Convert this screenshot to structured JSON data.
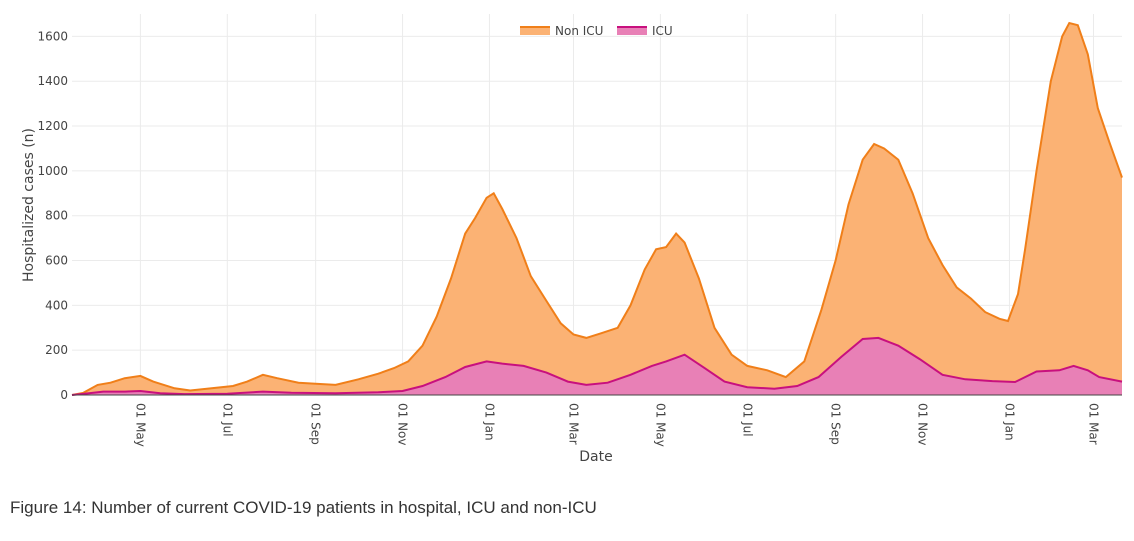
{
  "chart_data": {
    "type": "area",
    "title": "",
    "xlabel": "Date",
    "ylabel": "Hospitalized cases (n)",
    "ylim": [
      0,
      1700
    ],
    "yticks": [
      0,
      200,
      400,
      600,
      800,
      1000,
      1200,
      1400,
      1600
    ],
    "xlim": [
      "2020-03-14",
      "2022-03-21"
    ],
    "xticks": [
      {
        "date": "2020-05-01",
        "label": "01 May"
      },
      {
        "date": "2020-07-01",
        "label": "01 Jul"
      },
      {
        "date": "2020-09-01",
        "label": "01 Sep"
      },
      {
        "date": "2020-11-01",
        "label": "01 Nov"
      },
      {
        "date": "2021-01-01",
        "label": "01 Jan"
      },
      {
        "date": "2021-03-01",
        "label": "01 Mar"
      },
      {
        "date": "2021-05-01",
        "label": "01 May"
      },
      {
        "date": "2021-07-01",
        "label": "01 Jul"
      },
      {
        "date": "2021-09-01",
        "label": "01 Sep"
      },
      {
        "date": "2021-11-01",
        "label": "01 Nov"
      },
      {
        "date": "2022-01-01",
        "label": "01 Jan"
      },
      {
        "date": "2022-03-01",
        "label": "01 Mar"
      }
    ],
    "legend": {
      "position": "top-center",
      "entries": [
        "Non ICU",
        "ICU"
      ]
    },
    "grid": true,
    "series": [
      {
        "name": "Non ICU",
        "line_color": "#f07f19",
        "fill_color": "#fbb274",
        "stacked_on": "ICU",
        "points": [
          [
            "2020-03-14",
            0
          ],
          [
            "2020-03-22",
            10
          ],
          [
            "2020-04-01",
            45
          ],
          [
            "2020-04-10",
            55
          ],
          [
            "2020-04-20",
            75
          ],
          [
            "2020-05-01",
            85
          ],
          [
            "2020-05-10",
            60
          ],
          [
            "2020-05-25",
            30
          ],
          [
            "2020-06-05",
            20
          ],
          [
            "2020-06-20",
            30
          ],
          [
            "2020-07-05",
            40
          ],
          [
            "2020-07-15",
            60
          ],
          [
            "2020-07-26",
            90
          ],
          [
            "2020-08-05",
            75
          ],
          [
            "2020-08-20",
            55
          ],
          [
            "2020-09-01",
            50
          ],
          [
            "2020-09-15",
            45
          ],
          [
            "2020-10-01",
            70
          ],
          [
            "2020-10-15",
            95
          ],
          [
            "2020-10-26",
            120
          ],
          [
            "2020-11-05",
            150
          ],
          [
            "2020-11-15",
            220
          ],
          [
            "2020-11-25",
            350
          ],
          [
            "2020-12-05",
            520
          ],
          [
            "2020-12-15",
            720
          ],
          [
            "2020-12-22",
            790
          ],
          [
            "2020-12-30",
            880
          ],
          [
            "2021-01-04",
            900
          ],
          [
            "2021-01-10",
            830
          ],
          [
            "2021-01-20",
            700
          ],
          [
            "2021-01-30",
            530
          ],
          [
            "2021-02-10",
            420
          ],
          [
            "2021-02-20",
            320
          ],
          [
            "2021-03-01",
            270
          ],
          [
            "2021-03-10",
            255
          ],
          [
            "2021-03-20",
            275
          ],
          [
            "2021-04-01",
            300
          ],
          [
            "2021-04-10",
            400
          ],
          [
            "2021-04-20",
            560
          ],
          [
            "2021-04-28",
            650
          ],
          [
            "2021-05-05",
            660
          ],
          [
            "2021-05-12",
            720
          ],
          [
            "2021-05-18",
            680
          ],
          [
            "2021-05-28",
            520
          ],
          [
            "2021-06-08",
            300
          ],
          [
            "2021-06-20",
            180
          ],
          [
            "2021-07-01",
            130
          ],
          [
            "2021-07-15",
            110
          ],
          [
            "2021-07-28",
            80
          ],
          [
            "2021-08-10",
            150
          ],
          [
            "2021-08-22",
            380
          ],
          [
            "2021-09-01",
            600
          ],
          [
            "2021-09-10",
            850
          ],
          [
            "2021-09-20",
            1050
          ],
          [
            "2021-09-28",
            1120
          ],
          [
            "2021-10-05",
            1100
          ],
          [
            "2021-10-15",
            1050
          ],
          [
            "2021-10-25",
            900
          ],
          [
            "2021-11-05",
            700
          ],
          [
            "2021-11-15",
            580
          ],
          [
            "2021-11-25",
            480
          ],
          [
            "2021-12-05",
            430
          ],
          [
            "2021-12-15",
            370
          ],
          [
            "2021-12-25",
            340
          ],
          [
            "2021-12-31",
            330
          ],
          [
            "2022-01-07",
            450
          ],
          [
            "2022-01-12",
            650
          ],
          [
            "2022-01-20",
            1000
          ],
          [
            "2022-01-30",
            1400
          ],
          [
            "2022-02-07",
            1600
          ],
          [
            "2022-02-12",
            1660
          ],
          [
            "2022-02-18",
            1650
          ],
          [
            "2022-02-25",
            1520
          ],
          [
            "2022-03-04",
            1280
          ],
          [
            "2022-03-12",
            1130
          ],
          [
            "2022-03-21",
            970
          ]
        ]
      },
      {
        "name": "ICU",
        "line_color": "#c8107e",
        "fill_color": "#e880b6",
        "points": [
          [
            "2020-03-14",
            0
          ],
          [
            "2020-03-22",
            5
          ],
          [
            "2020-04-05",
            15
          ],
          [
            "2020-04-20",
            15
          ],
          [
            "2020-05-01",
            18
          ],
          [
            "2020-05-15",
            8
          ],
          [
            "2020-06-01",
            4
          ],
          [
            "2020-07-01",
            6
          ],
          [
            "2020-07-26",
            15
          ],
          [
            "2020-08-15",
            10
          ],
          [
            "2020-09-15",
            8
          ],
          [
            "2020-10-15",
            12
          ],
          [
            "2020-11-01",
            18
          ],
          [
            "2020-11-15",
            40
          ],
          [
            "2020-12-01",
            80
          ],
          [
            "2020-12-15",
            125
          ],
          [
            "2020-12-30",
            150
          ],
          [
            "2021-01-10",
            140
          ],
          [
            "2021-01-25",
            130
          ],
          [
            "2021-02-10",
            100
          ],
          [
            "2021-02-25",
            60
          ],
          [
            "2021-03-10",
            45
          ],
          [
            "2021-03-25",
            55
          ],
          [
            "2021-04-10",
            90
          ],
          [
            "2021-04-25",
            130
          ],
          [
            "2021-05-05",
            150
          ],
          [
            "2021-05-18",
            180
          ],
          [
            "2021-06-01",
            120
          ],
          [
            "2021-06-15",
            60
          ],
          [
            "2021-07-01",
            35
          ],
          [
            "2021-07-20",
            28
          ],
          [
            "2021-08-05",
            40
          ],
          [
            "2021-08-20",
            80
          ],
          [
            "2021-09-05",
            170
          ],
          [
            "2021-09-20",
            250
          ],
          [
            "2021-10-01",
            255
          ],
          [
            "2021-10-15",
            220
          ],
          [
            "2021-10-30",
            160
          ],
          [
            "2021-11-15",
            90
          ],
          [
            "2021-12-01",
            70
          ],
          [
            "2021-12-20",
            62
          ],
          [
            "2022-01-05",
            58
          ],
          [
            "2022-01-20",
            105
          ],
          [
            "2022-02-05",
            110
          ],
          [
            "2022-02-15",
            130
          ],
          [
            "2022-02-25",
            110
          ],
          [
            "2022-03-05",
            80
          ],
          [
            "2022-03-21",
            60
          ]
        ]
      }
    ]
  },
  "caption": "Figure 14: Number of current COVID-19 patients in hospital, ICU and non-ICU"
}
